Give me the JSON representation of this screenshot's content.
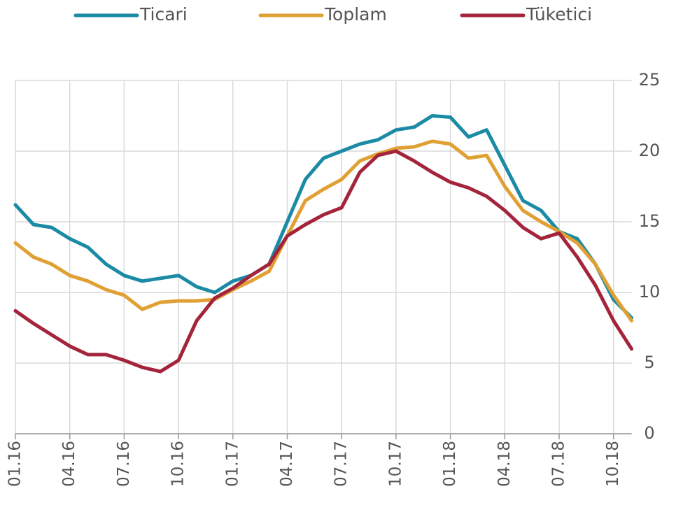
{
  "chart_data": {
    "type": "line",
    "categories": [
      "01.16",
      null,
      null,
      "04.16",
      null,
      null,
      "07.16",
      null,
      null,
      "10.16",
      null,
      null,
      "01.17",
      null,
      null,
      "04.17",
      null,
      null,
      "07.17",
      null,
      null,
      "10.17",
      null,
      null,
      "01.18",
      null,
      null,
      "04.18",
      null,
      null,
      "07.18",
      null,
      null,
      "10.18",
      null
    ],
    "series": [
      {
        "name": "Ticari",
        "color": "#1b8aa5",
        "values": [
          16.2,
          14.8,
          14.6,
          13.8,
          13.2,
          12.0,
          11.2,
          10.8,
          11.0,
          11.2,
          10.4,
          10.0,
          10.8,
          11.2,
          12.0,
          15.0,
          18.0,
          19.5,
          20.0,
          20.5,
          20.8,
          21.5,
          21.7,
          22.5,
          22.4,
          21.0,
          21.5,
          19.0,
          16.5,
          15.8,
          14.3,
          13.8,
          12.0,
          9.5,
          8.2
        ]
      },
      {
        "name": "Toplam",
        "color": "#e0a033",
        "values": [
          13.5,
          12.5,
          12.0,
          11.2,
          10.8,
          10.2,
          9.8,
          8.8,
          9.3,
          9.4,
          9.4,
          9.5,
          10.2,
          10.8,
          11.5,
          14.0,
          16.5,
          17.3,
          18.0,
          19.3,
          19.8,
          20.2,
          20.3,
          20.7,
          20.5,
          19.5,
          19.7,
          17.5,
          15.8,
          15.0,
          14.3,
          13.5,
          12.0,
          9.8,
          8.0
        ]
      },
      {
        "name": "Tüketici",
        "color": "#a3243b",
        "values": [
          8.7,
          7.8,
          7.0,
          6.2,
          5.6,
          5.6,
          5.2,
          4.7,
          4.4,
          5.2,
          8.0,
          9.6,
          10.3,
          11.2,
          12.0,
          14.0,
          14.8,
          15.5,
          16.0,
          18.5,
          19.7,
          20.0,
          19.3,
          18.5,
          17.8,
          17.4,
          16.8,
          15.8,
          14.6,
          13.8,
          14.2,
          12.5,
          10.5,
          8.0,
          6.0
        ]
      }
    ],
    "ylim": [
      0,
      25
    ],
    "yticks": [
      0,
      5,
      10,
      15,
      20,
      25
    ],
    "grid": true,
    "legend": "top"
  }
}
